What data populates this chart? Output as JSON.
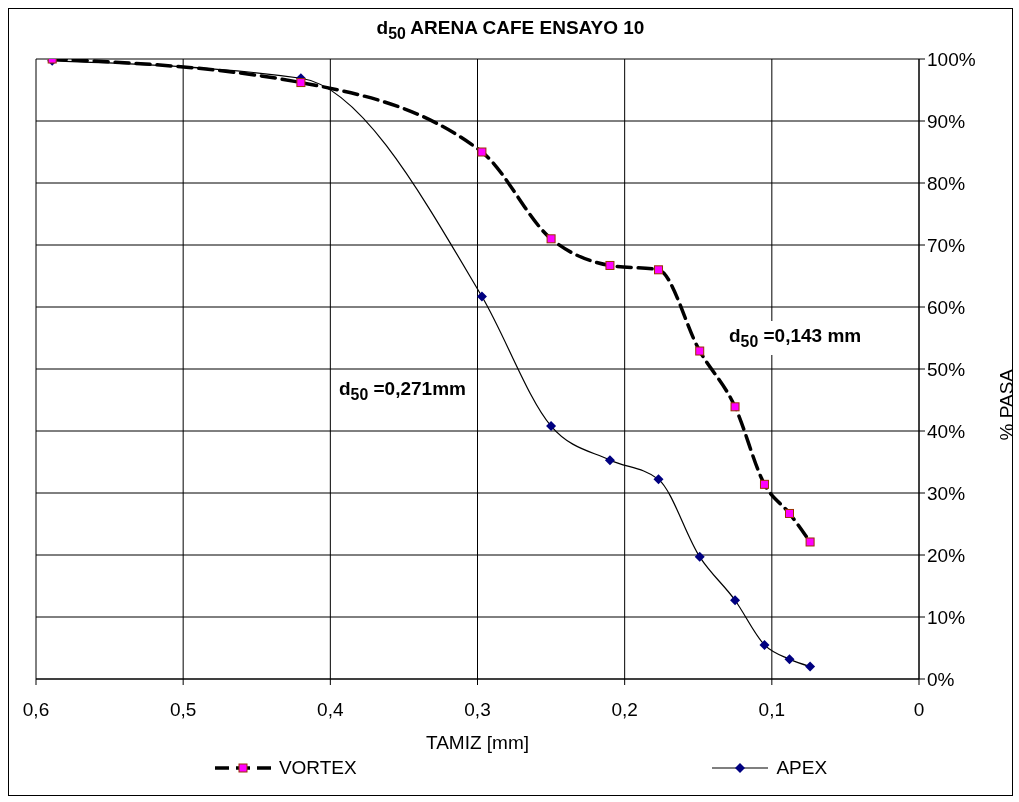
{
  "chart_data": {
    "type": "line",
    "title": "d$_{50}$ ARENA CAFE  ENSAYO 10",
    "xlabel": "TAMIZ [mm]",
    "ylabel": "% PASA",
    "x": [
      0.589,
      0.42,
      0.297,
      0.25,
      0.21,
      0.177,
      0.149,
      0.125,
      0.105,
      0.088,
      0.074
    ],
    "series": [
      {
        "name": "VORTEX",
        "color": "#ff00ff",
        "marker": "square",
        "line_style": "dashed",
        "values": [
          100,
          96.2,
          85,
          71,
          66.7,
          66,
          52.9,
          43.9,
          31.4,
          26.7,
          22.1
        ]
      },
      {
        "name": "APEX",
        "color": "#000080",
        "marker": "diamond",
        "line_style": "solid",
        "values": [
          99.7,
          96.9,
          61.7,
          40.8,
          35.3,
          32.2,
          19.7,
          12.7,
          5.5,
          3.2,
          2
        ]
      }
    ],
    "xlim": [
      0.6,
      0
    ],
    "xticks": [
      {
        "value": 0.6,
        "label": "0,6"
      },
      {
        "value": 0.5,
        "label": "0,5"
      },
      {
        "value": 0.4,
        "label": "0,4"
      },
      {
        "value": 0.3,
        "label": "0,3"
      },
      {
        "value": 0.2,
        "label": "0,2"
      },
      {
        "value": 0.1,
        "label": "0,1"
      },
      0
    ],
    "ylim": [
      0,
      100
    ],
    "yticks": [
      {
        "value": 0,
        "label": "0%"
      },
      {
        "value": 10,
        "label": "10%"
      },
      {
        "value": 20,
        "label": "20%"
      },
      {
        "value": 30,
        "label": "30%"
      },
      {
        "value": 40,
        "label": "40%"
      },
      {
        "value": 50,
        "label": "50%"
      },
      {
        "value": 60,
        "label": "60%"
      },
      {
        "value": 70,
        "label": "70%"
      },
      {
        "value": 80,
        "label": "80%"
      },
      {
        "value": 90,
        "label": "90%"
      },
      {
        "value": 100,
        "label": "100%"
      }
    ],
    "grid": true,
    "legend": "bottom",
    "annotations": [
      "d$_{50}$ =0,143 mm",
      "d$_{50}$ =0,271mm"
    ]
  }
}
